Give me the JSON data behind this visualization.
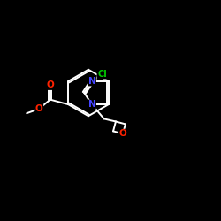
{
  "background_color": "#000000",
  "atom_colors": {
    "C": "#ffffff",
    "N": "#4444ff",
    "O": "#ff2200",
    "Cl": "#00cc00",
    "H": "#ffffff"
  },
  "bond_color": "#ffffff",
  "bond_width": 1.4,
  "font_size": 7.5,
  "figsize": [
    2.5,
    2.5
  ],
  "dpi": 100
}
